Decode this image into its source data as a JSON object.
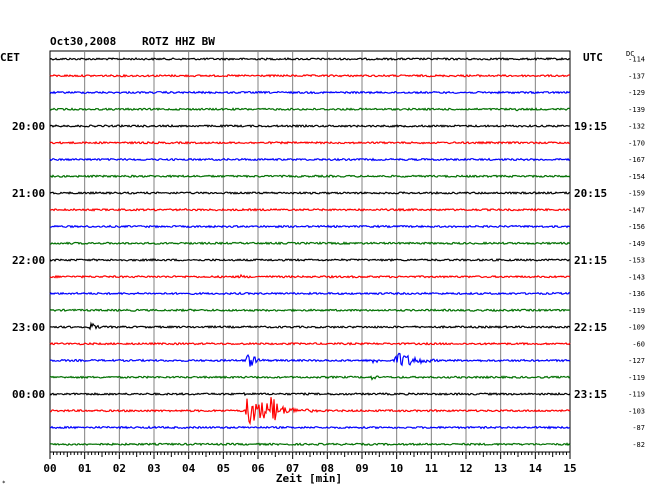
{
  "header": {
    "date": "Oct30,2008",
    "station": "ROTZ HHZ BW",
    "left_timezone": "CET",
    "right_timezone": "UTC",
    "dc_label": "DC"
  },
  "colors": {
    "trace_cycle": [
      "#000000",
      "#ff0000",
      "#0000ff",
      "#007000"
    ],
    "grid": "#808080"
  },
  "chart_data": {
    "type": "line",
    "title": "Oct30,2008  ROTZ HHZ BW",
    "xlabel": "Zeit [min]",
    "x_ticks": [
      "00",
      "01",
      "02",
      "03",
      "04",
      "05",
      "06",
      "07",
      "08",
      "09",
      "10",
      "11",
      "12",
      "13",
      "14",
      "15"
    ],
    "xlim": [
      0,
      15
    ],
    "hour_labels": [
      {
        "trace": 4,
        "cet": "20:00",
        "utc": "19:15"
      },
      {
        "trace": 8,
        "cet": "21:00",
        "utc": "20:15"
      },
      {
        "trace": 12,
        "cet": "22:00",
        "utc": "21:15"
      },
      {
        "trace": 16,
        "cet": "23:00",
        "utc": "22:15"
      },
      {
        "trace": 20,
        "cet": "00:00",
        "utc": "23:15"
      }
    ],
    "dc_offsets": [
      "-114",
      "-137",
      "-129",
      "-139",
      "-132",
      "-170",
      "-167",
      "-154",
      "-159",
      "-147",
      "-156",
      "-149",
      "-153",
      "-143",
      "-136",
      "-119",
      "-109",
      "-60",
      "-127",
      "-119",
      "-119",
      "-103",
      "-87",
      "-82"
    ],
    "events": [
      {
        "trace": 3,
        "minute": 13.4,
        "amplitude": 2.5,
        "duration": 0.4
      },
      {
        "trace": 13,
        "minute": 5.5,
        "amplitude": 2.5,
        "duration": 0.4
      },
      {
        "trace": 16,
        "minute": 1.2,
        "amplitude": 5,
        "duration": 0.5
      },
      {
        "trace": 18,
        "minute": 5.7,
        "amplitude": 9,
        "duration": 0.7
      },
      {
        "trace": 18,
        "minute": 9.3,
        "amplitude": 4,
        "duration": 0.6
      },
      {
        "trace": 18,
        "minute": 10.0,
        "amplitude": 10,
        "duration": 1.6
      },
      {
        "trace": 19,
        "minute": 9.3,
        "amplitude": 3,
        "duration": 0.5
      },
      {
        "trace": 20,
        "minute": 5.6,
        "amplitude": 2,
        "duration": 0.3
      },
      {
        "trace": 21,
        "minute": 5.7,
        "amplitude": 16,
        "duration": 2.3
      },
      {
        "trace": 21,
        "minute": 6.4,
        "amplitude": 22,
        "duration": 0.5
      }
    ]
  }
}
